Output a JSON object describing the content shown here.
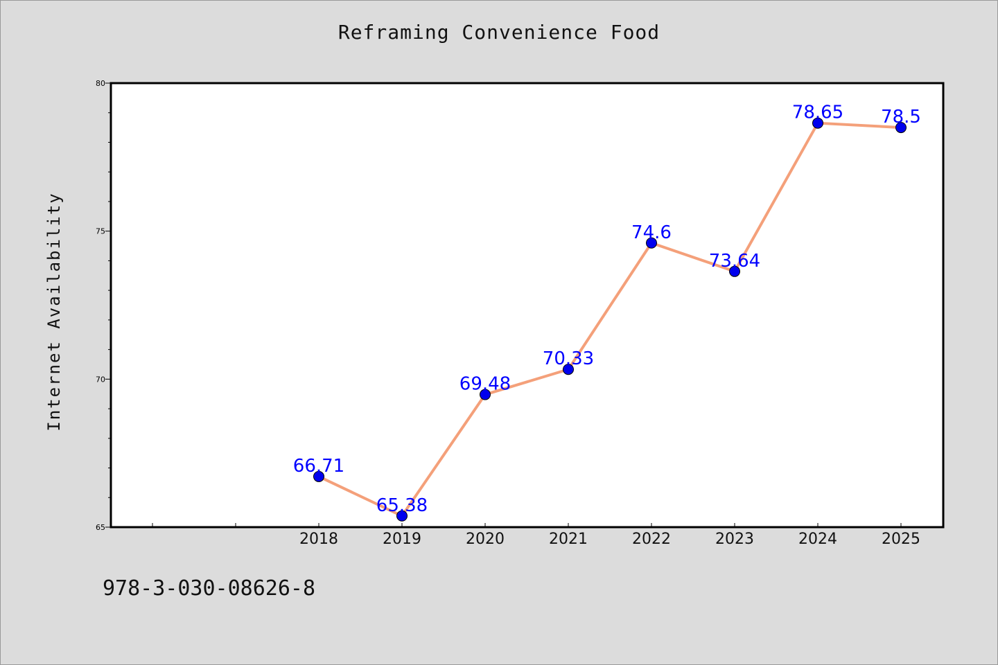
{
  "chart_data": {
    "type": "line",
    "title": "Reframing Convenience Food",
    "xlabel": "",
    "ylabel": "Internet Availability",
    "categories": [
      "2018",
      "2019",
      "2020",
      "2021",
      "2022",
      "2023",
      "2024",
      "2025"
    ],
    "series": [
      {
        "values": [
          66.71,
          65.38,
          69.48,
          70.33,
          74.6,
          73.64,
          78.65,
          78.5
        ],
        "labels": [
          "66.71",
          "65.38",
          "69.48",
          "70.33",
          "74.6",
          "73.64",
          "78.65",
          "78.5"
        ],
        "line_color": "#f4a07a",
        "marker_color": "#0000ee"
      }
    ],
    "yticks": [
      "65",
      "70",
      "75",
      "80"
    ],
    "ylim": [
      65,
      80
    ],
    "grid": false,
    "legend": "none"
  },
  "footer_code": "978-3-030-08626-8"
}
